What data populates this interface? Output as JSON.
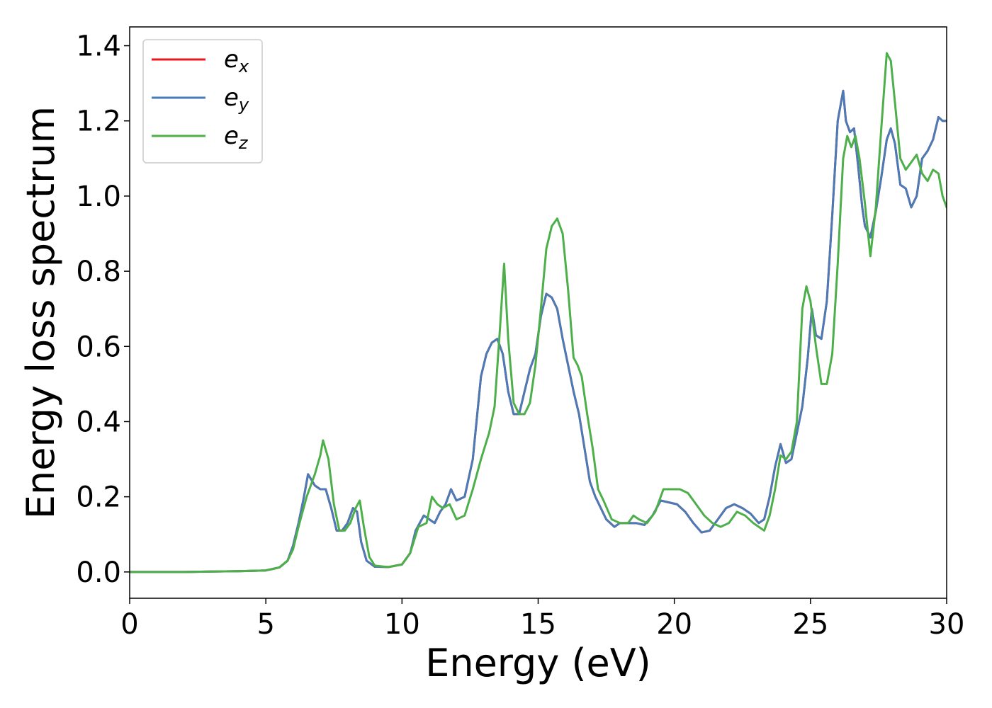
{
  "chart_data": {
    "type": "line",
    "title": "",
    "xlabel": "Energy (eV)",
    "ylabel": "Energy loss spectrum",
    "xlim": [
      0,
      30
    ],
    "ylim": [
      -0.07,
      1.45
    ],
    "xticks": [
      0,
      5,
      10,
      15,
      20,
      25,
      30
    ],
    "xtick_labels": [
      "0",
      "5",
      "10",
      "15",
      "20",
      "25",
      "30"
    ],
    "yticks": [
      0.0,
      0.2,
      0.4,
      0.6,
      0.8,
      1.0,
      1.2,
      1.4
    ],
    "ytick_labels": [
      "0.0",
      "0.2",
      "0.4",
      "0.6",
      "0.8",
      "1.0",
      "1.2",
      "1.4"
    ],
    "grid": false,
    "legend_position": "top-left",
    "series": [
      {
        "name": "e_x",
        "legend_base": "e",
        "legend_sub": "x",
        "color": "#e41a1c",
        "x": [
          0,
          1,
          2,
          3,
          4,
          5,
          5.5,
          5.8,
          6.0,
          6.2,
          6.4,
          6.55,
          6.8,
          7.0,
          7.2,
          7.4,
          7.6,
          7.8,
          8.0,
          8.2,
          8.35,
          8.5,
          8.7,
          9.0,
          9.5,
          10.0,
          10.3,
          10.5,
          10.8,
          11.0,
          11.2,
          11.4,
          11.6,
          11.8,
          12.0,
          12.3,
          12.6,
          12.9,
          13.1,
          13.3,
          13.5,
          13.7,
          13.9,
          14.1,
          14.3,
          14.5,
          14.7,
          14.9,
          15.1,
          15.3,
          15.5,
          15.7,
          15.9,
          16.1,
          16.3,
          16.5,
          16.7,
          16.9,
          17.1,
          17.3,
          17.5,
          17.8,
          18.0,
          18.3,
          18.6,
          18.9,
          19.2,
          19.5,
          19.8,
          20.1,
          20.4,
          20.7,
          21.0,
          21.3,
          21.6,
          21.9,
          22.2,
          22.5,
          22.8,
          23.1,
          23.3,
          23.5,
          23.7,
          23.9,
          24.1,
          24.3,
          24.5,
          24.7,
          24.9,
          25.05,
          25.2,
          25.4,
          25.6,
          25.8,
          26.0,
          26.2,
          26.3,
          26.45,
          26.6,
          26.75,
          26.9,
          27.0,
          27.2,
          27.4,
          27.6,
          27.8,
          27.95,
          28.1,
          28.3,
          28.5,
          28.7,
          28.9,
          29.1,
          29.3,
          29.5,
          29.7,
          29.85,
          30.0
        ],
        "y": [
          0.0,
          0.0,
          0.0,
          0.001,
          0.002,
          0.004,
          0.012,
          0.03,
          0.07,
          0.13,
          0.2,
          0.26,
          0.23,
          0.22,
          0.22,
          0.17,
          0.11,
          0.11,
          0.13,
          0.17,
          0.16,
          0.08,
          0.03,
          0.014,
          0.013,
          0.02,
          0.05,
          0.11,
          0.15,
          0.14,
          0.13,
          0.16,
          0.18,
          0.22,
          0.19,
          0.2,
          0.3,
          0.52,
          0.58,
          0.61,
          0.62,
          0.58,
          0.48,
          0.42,
          0.42,
          0.48,
          0.54,
          0.58,
          0.68,
          0.74,
          0.73,
          0.7,
          0.62,
          0.55,
          0.48,
          0.42,
          0.33,
          0.24,
          0.2,
          0.17,
          0.14,
          0.12,
          0.13,
          0.13,
          0.13,
          0.125,
          0.15,
          0.19,
          0.185,
          0.18,
          0.16,
          0.13,
          0.105,
          0.11,
          0.14,
          0.17,
          0.18,
          0.17,
          0.155,
          0.13,
          0.14,
          0.2,
          0.28,
          0.34,
          0.29,
          0.3,
          0.37,
          0.44,
          0.57,
          0.7,
          0.63,
          0.62,
          0.72,
          0.95,
          1.2,
          1.28,
          1.2,
          1.17,
          1.18,
          1.08,
          0.97,
          0.92,
          0.89,
          0.96,
          1.05,
          1.15,
          1.18,
          1.14,
          1.03,
          1.02,
          0.97,
          1.0,
          1.1,
          1.12,
          1.15,
          1.21,
          1.2,
          1.2
        ]
      },
      {
        "name": "e_y",
        "legend_base": "e",
        "legend_sub": "y",
        "color": "#4a7bb7",
        "x": [
          0,
          1,
          2,
          3,
          4,
          5,
          5.5,
          5.8,
          6.0,
          6.2,
          6.4,
          6.55,
          6.8,
          7.0,
          7.2,
          7.4,
          7.6,
          7.8,
          8.0,
          8.2,
          8.35,
          8.5,
          8.7,
          9.0,
          9.5,
          10.0,
          10.3,
          10.5,
          10.8,
          11.0,
          11.2,
          11.4,
          11.6,
          11.8,
          12.0,
          12.3,
          12.6,
          12.9,
          13.1,
          13.3,
          13.5,
          13.7,
          13.9,
          14.1,
          14.3,
          14.5,
          14.7,
          14.9,
          15.1,
          15.3,
          15.5,
          15.7,
          15.9,
          16.1,
          16.3,
          16.5,
          16.7,
          16.9,
          17.1,
          17.3,
          17.5,
          17.8,
          18.0,
          18.3,
          18.6,
          18.9,
          19.2,
          19.5,
          19.8,
          20.1,
          20.4,
          20.7,
          21.0,
          21.3,
          21.6,
          21.9,
          22.2,
          22.5,
          22.8,
          23.1,
          23.3,
          23.5,
          23.7,
          23.9,
          24.1,
          24.3,
          24.5,
          24.7,
          24.9,
          25.05,
          25.2,
          25.4,
          25.6,
          25.8,
          26.0,
          26.2,
          26.3,
          26.45,
          26.6,
          26.75,
          26.9,
          27.0,
          27.2,
          27.4,
          27.6,
          27.8,
          27.95,
          28.1,
          28.3,
          28.5,
          28.7,
          28.9,
          29.1,
          29.3,
          29.5,
          29.7,
          29.85,
          30.0
        ],
        "y": [
          0.0,
          0.0,
          0.0,
          0.001,
          0.002,
          0.004,
          0.012,
          0.03,
          0.07,
          0.13,
          0.2,
          0.26,
          0.23,
          0.22,
          0.22,
          0.17,
          0.11,
          0.11,
          0.13,
          0.17,
          0.16,
          0.08,
          0.03,
          0.014,
          0.013,
          0.02,
          0.05,
          0.11,
          0.15,
          0.14,
          0.13,
          0.16,
          0.18,
          0.22,
          0.19,
          0.2,
          0.3,
          0.52,
          0.58,
          0.61,
          0.62,
          0.58,
          0.48,
          0.42,
          0.42,
          0.48,
          0.54,
          0.58,
          0.68,
          0.74,
          0.73,
          0.7,
          0.62,
          0.55,
          0.48,
          0.42,
          0.33,
          0.24,
          0.2,
          0.17,
          0.14,
          0.12,
          0.13,
          0.13,
          0.13,
          0.125,
          0.15,
          0.19,
          0.185,
          0.18,
          0.16,
          0.13,
          0.105,
          0.11,
          0.14,
          0.17,
          0.18,
          0.17,
          0.155,
          0.13,
          0.14,
          0.2,
          0.28,
          0.34,
          0.29,
          0.3,
          0.37,
          0.44,
          0.57,
          0.7,
          0.63,
          0.62,
          0.72,
          0.95,
          1.2,
          1.28,
          1.2,
          1.17,
          1.18,
          1.08,
          0.97,
          0.92,
          0.89,
          0.96,
          1.05,
          1.15,
          1.18,
          1.14,
          1.03,
          1.02,
          0.97,
          1.0,
          1.1,
          1.12,
          1.15,
          1.21,
          1.2,
          1.2
        ]
      },
      {
        "name": "e_z",
        "legend_base": "e",
        "legend_sub": "z",
        "color": "#4daf4a",
        "x": [
          0,
          1,
          2,
          3,
          4,
          5,
          5.5,
          5.8,
          6.0,
          6.2,
          6.5,
          6.8,
          7.0,
          7.1,
          7.3,
          7.5,
          7.7,
          7.9,
          8.1,
          8.3,
          8.45,
          8.6,
          8.8,
          9.0,
          9.5,
          10.0,
          10.3,
          10.6,
          10.9,
          11.1,
          11.3,
          11.5,
          11.75,
          12.0,
          12.3,
          12.6,
          12.9,
          13.2,
          13.4,
          13.6,
          13.75,
          13.9,
          14.1,
          14.3,
          14.5,
          14.7,
          14.9,
          15.1,
          15.3,
          15.5,
          15.7,
          15.9,
          16.1,
          16.3,
          16.45,
          16.6,
          16.8,
          17.0,
          17.2,
          17.4,
          17.7,
          18.0,
          18.3,
          18.5,
          18.7,
          19.0,
          19.3,
          19.6,
          19.9,
          20.2,
          20.5,
          20.8,
          21.1,
          21.4,
          21.7,
          22.0,
          22.3,
          22.6,
          22.9,
          23.1,
          23.3,
          23.5,
          23.7,
          23.9,
          24.1,
          24.3,
          24.5,
          24.7,
          24.85,
          25.0,
          25.2,
          25.4,
          25.6,
          25.8,
          26.0,
          26.2,
          26.35,
          26.5,
          26.65,
          26.8,
          27.0,
          27.2,
          27.4,
          27.6,
          27.8,
          27.95,
          28.1,
          28.3,
          28.5,
          28.7,
          28.9,
          29.1,
          29.3,
          29.5,
          29.7,
          29.85,
          30.0
        ],
        "y": [
          0.0,
          0.0,
          0.0,
          0.001,
          0.002,
          0.004,
          0.012,
          0.03,
          0.06,
          0.12,
          0.2,
          0.26,
          0.31,
          0.35,
          0.3,
          0.18,
          0.11,
          0.11,
          0.13,
          0.17,
          0.19,
          0.12,
          0.04,
          0.017,
          0.013,
          0.02,
          0.05,
          0.12,
          0.13,
          0.2,
          0.18,
          0.17,
          0.18,
          0.14,
          0.15,
          0.22,
          0.3,
          0.37,
          0.44,
          0.65,
          0.82,
          0.62,
          0.45,
          0.42,
          0.42,
          0.45,
          0.55,
          0.7,
          0.86,
          0.92,
          0.94,
          0.9,
          0.75,
          0.57,
          0.55,
          0.52,
          0.42,
          0.33,
          0.22,
          0.19,
          0.14,
          0.13,
          0.13,
          0.15,
          0.14,
          0.13,
          0.16,
          0.22,
          0.22,
          0.22,
          0.21,
          0.18,
          0.15,
          0.13,
          0.12,
          0.13,
          0.16,
          0.15,
          0.13,
          0.12,
          0.11,
          0.15,
          0.22,
          0.31,
          0.3,
          0.32,
          0.4,
          0.7,
          0.76,
          0.72,
          0.6,
          0.5,
          0.5,
          0.58,
          0.82,
          1.1,
          1.16,
          1.13,
          1.16,
          1.1,
          0.98,
          0.84,
          0.97,
          1.18,
          1.38,
          1.36,
          1.25,
          1.1,
          1.07,
          1.09,
          1.11,
          1.06,
          1.04,
          1.07,
          1.06,
          1.0,
          0.97
        ]
      }
    ]
  }
}
